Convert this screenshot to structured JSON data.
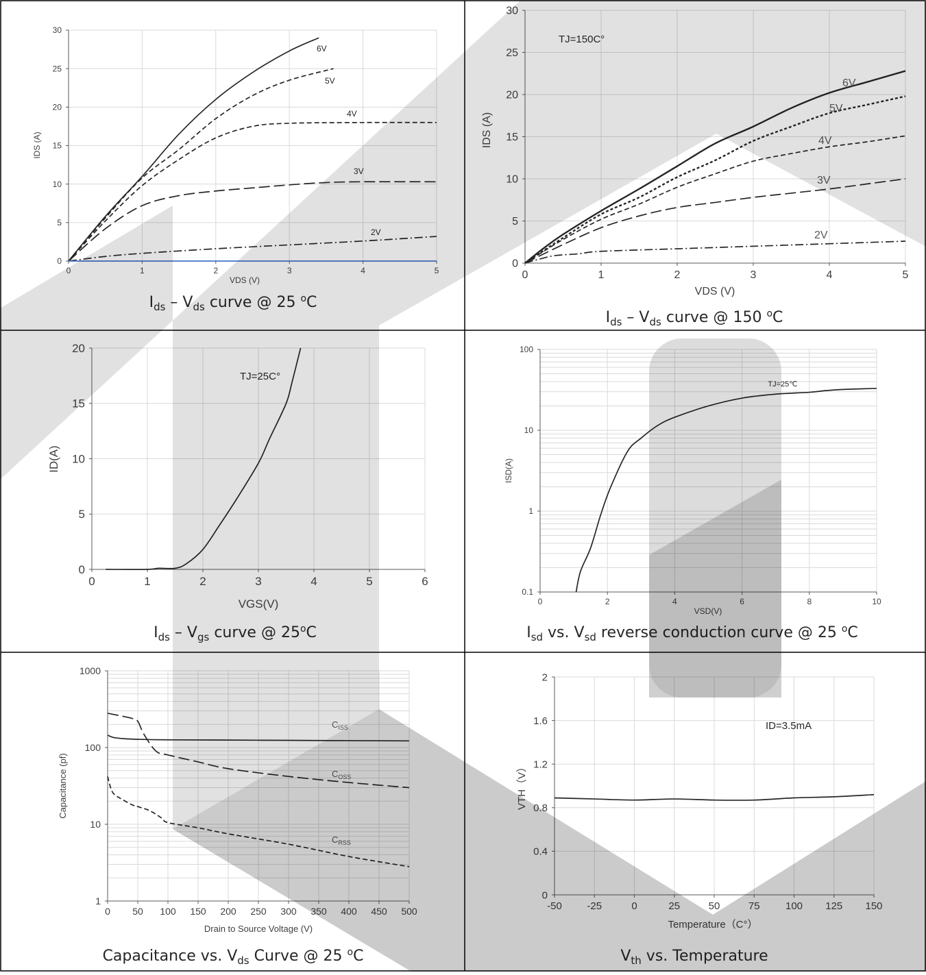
{
  "chart_data": [
    {
      "type": "line",
      "caption": {
        "main": "I",
        "sub1": "ds",
        "mid": " – V",
        "sub2": "ds",
        "tail": " curve @ 25 ",
        "sup": "o",
        "unit": "C"
      },
      "title": "",
      "xlabel": "VDS (V)",
      "ylabel": "IDS (A)",
      "xlim": [
        0,
        5
      ],
      "ylim": [
        0,
        30
      ],
      "xticks": [
        "0",
        "1",
        "2",
        "3",
        "4",
        "5"
      ],
      "yticks": [
        "0",
        "5",
        "10",
        "15",
        "20",
        "25",
        "30"
      ],
      "grid": true,
      "series": [
        {
          "name": "6V",
          "style": "solid",
          "x": [
            0,
            0.5,
            1,
            1.5,
            2,
            2.5,
            3,
            3.4
          ],
          "y": [
            0,
            5.8,
            11,
            16.5,
            21,
            24.5,
            27.3,
            29
          ]
        },
        {
          "name": "5V",
          "style": "dash",
          "x": [
            0,
            0.5,
            1,
            1.5,
            2,
            2.5,
            3,
            3.6
          ],
          "y": [
            0,
            5.6,
            10.8,
            14.5,
            18.5,
            21.5,
            23.5,
            25
          ]
        },
        {
          "name": "4V",
          "style": "dash",
          "x": [
            0,
            0.5,
            1,
            1.5,
            2,
            2.5,
            3,
            4,
            5
          ],
          "y": [
            0,
            5.2,
            9.8,
            13.2,
            16,
            17.5,
            17.9,
            18,
            18
          ]
        },
        {
          "name": "3V",
          "style": "longdash",
          "x": [
            0,
            0.5,
            1,
            1.5,
            2,
            2.5,
            3,
            3.5,
            4,
            5
          ],
          "y": [
            0,
            4.2,
            7.2,
            8.5,
            9.1,
            9.5,
            9.9,
            10.2,
            10.3,
            10.3
          ]
        },
        {
          "name": "2V",
          "style": "dashdot",
          "x": [
            0,
            0.5,
            1,
            2,
            3,
            4,
            5
          ],
          "y": [
            0,
            0.6,
            1,
            1.6,
            2.1,
            2.6,
            3.2
          ]
        },
        {
          "name": "",
          "style": "blue",
          "x": [
            0,
            5
          ],
          "y": [
            0,
            0
          ]
        }
      ],
      "annotation": ""
    },
    {
      "type": "line",
      "caption": {
        "main": "I",
        "sub1": "ds",
        "mid": " – V",
        "sub2": "ds",
        "tail": " curve @ 150 ",
        "sup": "o",
        "unit": "C"
      },
      "title": "",
      "xlabel": "VDS (V)",
      "ylabel": "IDS (A)",
      "xlim": [
        0,
        5
      ],
      "ylim": [
        0,
        30
      ],
      "xticks": [
        "0",
        "1",
        "2",
        "3",
        "4",
        "5"
      ],
      "yticks": [
        "0",
        "5",
        "10",
        "15",
        "20",
        "25",
        "30"
      ],
      "grid": true,
      "series": [
        {
          "name": "6V",
          "style": "solid",
          "x": [
            0,
            0.25,
            0.5,
            1,
            1.5,
            2,
            2.5,
            3,
            3.5,
            4,
            4.5,
            5
          ],
          "y": [
            0,
            1.8,
            3.4,
            6.2,
            8.8,
            11.5,
            14.2,
            16.2,
            18.4,
            20.2,
            21.5,
            22.8
          ]
        },
        {
          "name": "5V",
          "style": "dot",
          "x": [
            0,
            0.5,
            1,
            1.5,
            2,
            2.5,
            3,
            3.5,
            4,
            4.5,
            5
          ],
          "y": [
            0,
            3.0,
            5.8,
            7.8,
            10.2,
            12.2,
            14.5,
            16.2,
            17.8,
            18.8,
            19.8
          ]
        },
        {
          "name": "4V",
          "style": "dash",
          "x": [
            0,
            0.5,
            1,
            1.5,
            2,
            2.5,
            3,
            3.5,
            4,
            4.5,
            5
          ],
          "y": [
            0,
            2.8,
            5.2,
            7.0,
            9.0,
            10.6,
            12.1,
            13.0,
            13.8,
            14.4,
            15.1
          ]
        },
        {
          "name": "3V",
          "style": "longdash",
          "x": [
            0,
            0.5,
            1,
            1.5,
            2,
            2.5,
            3,
            3.5,
            4,
            4.5,
            5
          ],
          "y": [
            0,
            2.2,
            4.2,
            5.6,
            6.6,
            7.2,
            7.8,
            8.3,
            8.8,
            9.4,
            10.0
          ]
        },
        {
          "name": "2V",
          "style": "dashdot",
          "x": [
            0,
            0.2,
            0.4,
            0.7,
            1,
            2,
            3,
            4,
            5
          ],
          "y": [
            0,
            0.5,
            0.9,
            1.1,
            1.4,
            1.7,
            2.0,
            2.3,
            2.6
          ]
        }
      ],
      "annotation": "TJ=150C°"
    },
    {
      "type": "line",
      "caption": {
        "main": "I",
        "sub1": "ds",
        "mid": " – V",
        "sub2": "gs",
        "tail": " curve @ 25",
        "sup": "o",
        "unit": "C"
      },
      "title": "",
      "xlabel": "VGS(V)",
      "ylabel": "ID(A)",
      "xlim": [
        0,
        6
      ],
      "ylim": [
        0,
        20
      ],
      "xticks": [
        "0",
        "1",
        "2",
        "3",
        "4",
        "5",
        "6"
      ],
      "yticks": [
        "0",
        "5",
        "10",
        "15",
        "20"
      ],
      "grid": true,
      "series": [
        {
          "name": "",
          "style": "solid",
          "x": [
            0.25,
            1,
            1.2,
            1.5,
            1.7,
            2,
            2.3,
            2.6,
            3,
            3.2,
            3.5,
            3.6,
            3.76
          ],
          "y": [
            0,
            0,
            0.1,
            0.1,
            0.5,
            1.8,
            4,
            6.3,
            9.6,
            11.8,
            15,
            16.8,
            20
          ]
        }
      ],
      "annotation": "TJ=25C°"
    },
    {
      "type": "line",
      "caption": {
        "main": "I",
        "sub1": "sd",
        "mid": " vs. V",
        "sub2": "sd",
        "tail": " reverse conduction curve @ 25 ",
        "sup": "o",
        "unit": "C"
      },
      "title": "",
      "xlabel": "VSD(V)",
      "ylabel": "ISD(A)",
      "xlim": [
        0,
        10
      ],
      "ylim": [
        0.1,
        100
      ],
      "log_y": true,
      "xticks": [
        "0",
        "2",
        "4",
        "6",
        "8",
        "10"
      ],
      "yticks": [
        "0.1",
        "1",
        "10",
        "100"
      ],
      "grid": true,
      "series": [
        {
          "name": "",
          "style": "solid",
          "x": [
            1.07,
            1.2,
            1.5,
            1.8,
            2.1,
            2.6,
            3,
            3.5,
            4,
            5,
            6,
            7,
            8,
            8.5,
            9,
            10
          ],
          "y": [
            0.1,
            0.18,
            0.35,
            0.9,
            2,
            5.5,
            8,
            11.5,
            14.5,
            20,
            25,
            28,
            29.5,
            31,
            32,
            33
          ]
        }
      ],
      "annotation": "TJ=25℃"
    },
    {
      "type": "line",
      "caption": {
        "main": "Capacitance vs. V",
        "sub1": "ds",
        "mid": "",
        "sub2": "",
        "tail": " Curve @ 25 ",
        "sup": "o",
        "unit": "C"
      },
      "title": "",
      "xlabel": "Drain to Source Voltage (V)",
      "ylabel": "Capacitance (pf)",
      "xlim": [
        0,
        500
      ],
      "ylim": [
        1,
        1000
      ],
      "log_y": true,
      "xticks": [
        "0",
        "50",
        "100",
        "150",
        "200",
        "250",
        "300",
        "350",
        "400",
        "450",
        "500"
      ],
      "yticks": [
        "1",
        "10",
        "100",
        "1000"
      ],
      "grid": true,
      "series": [
        {
          "name": "CISS",
          "style": "solid",
          "x": [
            0,
            10,
            30,
            50,
            100,
            200,
            300,
            400,
            500
          ],
          "y": [
            145,
            135,
            130,
            128,
            126,
            125,
            124,
            123,
            122
          ]
        },
        {
          "name": "COSS",
          "style": "longdash",
          "x": [
            0,
            20,
            40,
            50,
            60,
            80,
            100,
            150,
            200,
            300,
            400,
            500
          ],
          "y": [
            280,
            260,
            240,
            220,
            150,
            90,
            80,
            65,
            53,
            42,
            35,
            30
          ]
        },
        {
          "name": "CRSS",
          "style": "dash",
          "x": [
            0,
            5,
            10,
            20,
            40,
            50,
            70,
            90,
            100,
            150,
            200,
            300,
            400,
            500
          ],
          "y": [
            42,
            30,
            25,
            22,
            18,
            17,
            15,
            12,
            10.5,
            9,
            7.5,
            5.5,
            3.8,
            2.8
          ]
        }
      ],
      "series_labels": [
        {
          "main": "C",
          "sub": "ISS"
        },
        {
          "main": "C",
          "sub": "OSS"
        },
        {
          "main": "C",
          "sub": "RSS"
        }
      ],
      "annotation": ""
    },
    {
      "type": "line",
      "caption": {
        "main": "V",
        "sub1": "th",
        "mid": " vs. Temperature",
        "sub2": "",
        "tail": "",
        "sup": "",
        "unit": ""
      },
      "title": "",
      "xlabel": "Temperature（C°）",
      "ylabel": "VTH（V）",
      "xlim": [
        -50,
        150
      ],
      "ylim": [
        0,
        2
      ],
      "xticks": [
        "-50",
        "-25",
        "0",
        "25",
        "50",
        "75",
        "100",
        "125",
        "150"
      ],
      "yticks": [
        "0",
        "0.4",
        "0.8",
        "1.2",
        "1.6",
        "2"
      ],
      "grid": true,
      "series": [
        {
          "name": "",
          "style": "solid",
          "x": [
            -50,
            -25,
            0,
            25,
            50,
            75,
            100,
            125,
            150
          ],
          "y": [
            0.89,
            0.88,
            0.87,
            0.88,
            0.87,
            0.87,
            0.89,
            0.9,
            0.92
          ]
        }
      ],
      "annotation": "ID=3.5mA"
    }
  ]
}
